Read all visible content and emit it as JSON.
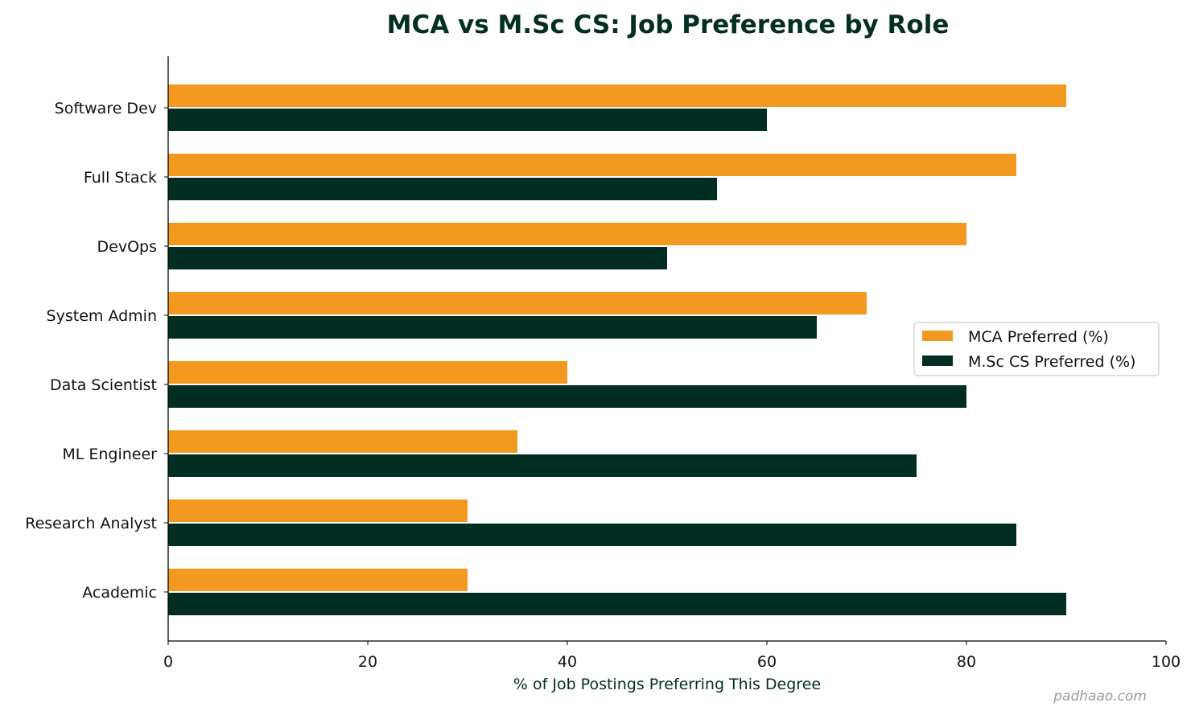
{
  "chart_data": {
    "type": "bar",
    "orientation": "horizontal",
    "title": "MCA vs M.Sc CS: Job Preference by Role",
    "xlabel": "% of Job Postings Preferring This Degree",
    "ylabel": "",
    "xlim": [
      0,
      100
    ],
    "xticks": [
      "0",
      "20",
      "40",
      "60",
      "80",
      "100"
    ],
    "categories": [
      "Software Dev",
      "Full Stack",
      "DevOps",
      "System Admin",
      "Data Scientist",
      "ML Engineer",
      "Research Analyst",
      "Academic"
    ],
    "series": [
      {
        "name": "MCA Preferred (%)",
        "color": "#F4991F",
        "values": [
          90,
          85,
          80,
          70,
          40,
          35,
          30,
          30
        ]
      },
      {
        "name": "M.Sc CS Preferred (%)",
        "color": "#022D22",
        "values": [
          60,
          55,
          50,
          65,
          80,
          75,
          85,
          90
        ]
      }
    ],
    "legend_position": "right",
    "grid": false
  },
  "watermark": "padhaao.com",
  "colors": {
    "title": "#032E22",
    "xlabel": "#032E22"
  }
}
